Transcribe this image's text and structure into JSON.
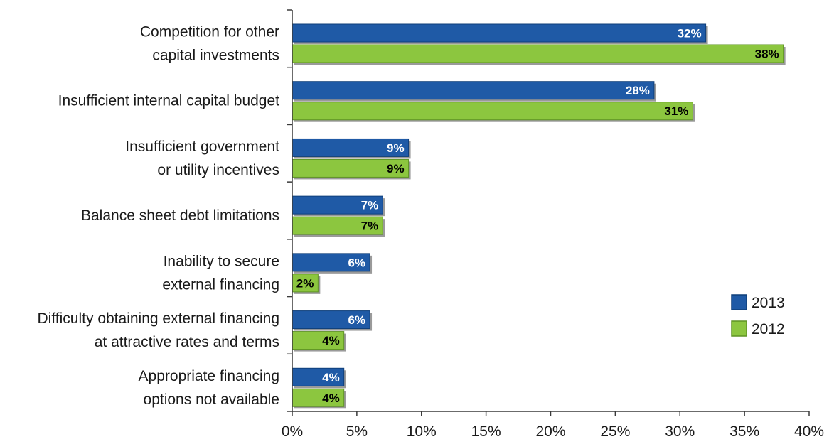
{
  "chart_data": {
    "type": "bar",
    "orientation": "horizontal",
    "categories": [
      [
        "Competition for other",
        "capital investments"
      ],
      [
        "Insufficient internal capital budget"
      ],
      [
        "Insufficient government",
        "or utility incentives"
      ],
      [
        "Balance sheet debt limitations"
      ],
      [
        "Inability to secure",
        "external financing"
      ],
      [
        "Difficulty obtaining external financing",
        "at attractive rates and terms"
      ],
      [
        "Appropriate financing",
        "options not available"
      ]
    ],
    "series": [
      {
        "name": "2013",
        "values": [
          32,
          28,
          9,
          7,
          6,
          6,
          4
        ],
        "labels": [
          "32%",
          "28%",
          "9%",
          "7%",
          "6%",
          "6%",
          "4%"
        ],
        "color": "#1f5aa6"
      },
      {
        "name": "2012",
        "values": [
          38,
          31,
          9,
          7,
          2,
          4,
          4
        ],
        "labels": [
          "38%",
          "31%",
          "9%",
          "7%",
          "2%",
          "4%",
          "4%"
        ],
        "color": "#8cc63f"
      }
    ],
    "xlim": [
      0,
      40
    ],
    "xticks": [
      "0%",
      "5%",
      "10%",
      "15%",
      "20%",
      "25%",
      "30%",
      "35%",
      "40%"
    ],
    "grid": false,
    "legend_position": "right"
  }
}
